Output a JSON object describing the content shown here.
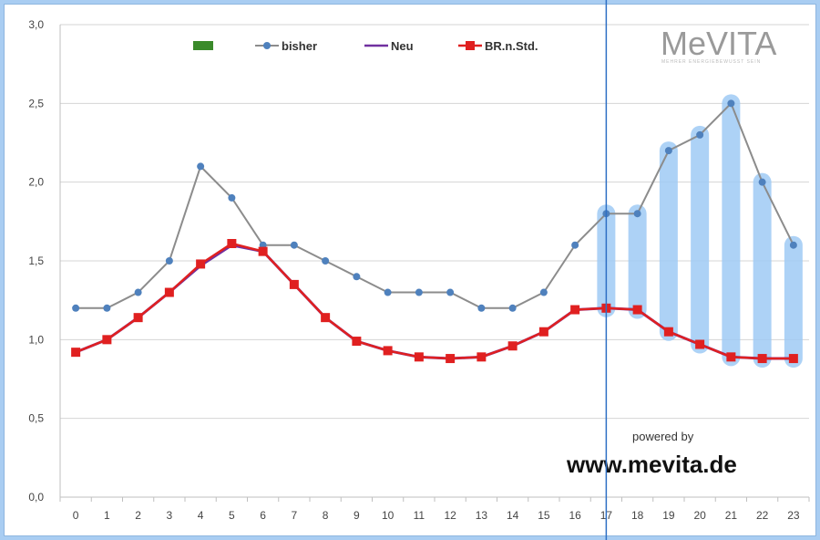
{
  "chart_data": {
    "type": "line",
    "title": "",
    "xlabel": "",
    "ylabel": "",
    "categories": [
      "0",
      "1",
      "2",
      "3",
      "4",
      "5",
      "6",
      "7",
      "8",
      "9",
      "10",
      "11",
      "12",
      "13",
      "14",
      "15",
      "16",
      "17",
      "18",
      "19",
      "20",
      "21",
      "22",
      "23"
    ],
    "yticks": [
      "0,0",
      "0,5",
      "1,0",
      "1,5",
      "2,0",
      "2,5",
      "3,0"
    ],
    "ylim": [
      0,
      3
    ],
    "grid": "horizontal",
    "legend_position": "top",
    "series": [
      {
        "name": "bisher",
        "color": "#8c8c8c",
        "marker_color": "#4f81bd",
        "values": [
          1.2,
          1.2,
          1.3,
          1.5,
          2.1,
          1.9,
          1.6,
          1.6,
          1.5,
          1.4,
          1.3,
          1.3,
          1.3,
          1.2,
          1.2,
          1.3,
          1.6,
          1.8,
          1.8,
          2.2,
          2.3,
          2.5,
          2.0,
          1.6
        ]
      },
      {
        "name": "Neu",
        "color": "#7030a0",
        "values": [
          0.92,
          1.0,
          1.14,
          1.3,
          1.47,
          1.6,
          1.56,
          1.35,
          1.14,
          0.99,
          0.93,
          0.89,
          0.88,
          0.89,
          0.96,
          1.05,
          1.19,
          1.2,
          1.19,
          1.05,
          0.97,
          0.89,
          0.88,
          0.88
        ]
      },
      {
        "name": "BR.n.Std.",
        "color": "#e02020",
        "values": [
          0.92,
          1.0,
          1.14,
          1.3,
          1.48,
          1.61,
          1.56,
          1.35,
          1.14,
          0.99,
          0.93,
          0.89,
          0.88,
          0.89,
          0.96,
          1.05,
          1.19,
          1.2,
          1.19,
          1.05,
          0.97,
          0.89,
          0.88,
          0.88
        ]
      }
    ],
    "first_legend_entry_color": "#3a8a2a",
    "highlight_hours": [
      "17",
      "18",
      "19",
      "20",
      "21",
      "22",
      "23"
    ],
    "highlight_color": "#9fcaf5",
    "divider_at": "17",
    "divider_color": "#2e6fc4"
  },
  "branding": {
    "logo": "MeVITA",
    "logo_subtitle": "MEHRER ENERGIEBEWUSST SEIN",
    "powered_by": "powered by",
    "website": "www.mevita.de"
  }
}
